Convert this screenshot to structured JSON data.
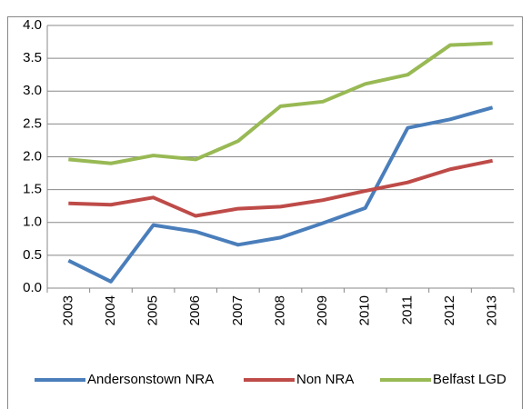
{
  "chart_data": {
    "type": "line",
    "categories": [
      "2003",
      "2004",
      "2005",
      "2006",
      "2007",
      "2008",
      "2009",
      "2010",
      "2011",
      "2012",
      "2013"
    ],
    "series": [
      {
        "name": "Andersonstown NRA",
        "color": "#4a7ebb",
        "values": [
          0.42,
          0.1,
          0.96,
          0.86,
          0.66,
          0.77,
          0.99,
          1.22,
          2.44,
          2.57,
          2.75
        ]
      },
      {
        "name": "Non NRA",
        "color": "#be4b48",
        "values": [
          1.29,
          1.27,
          1.38,
          1.1,
          1.21,
          1.24,
          1.34,
          1.48,
          1.61,
          1.81,
          1.94
        ]
      },
      {
        "name": "Belfast LGD",
        "color": "#98b954",
        "values": [
          1.96,
          1.9,
          2.02,
          1.96,
          2.24,
          2.77,
          2.84,
          3.11,
          3.25,
          3.7,
          3.73
        ]
      }
    ],
    "ylim": [
      0,
      4
    ],
    "yticks": [
      {
        "value": 0,
        "label": "0.0"
      },
      {
        "value": 0.5,
        "label": "0.5"
      },
      {
        "value": 1,
        "label": "1.0"
      },
      {
        "value": 1.5,
        "label": "1.5"
      },
      {
        "value": 2,
        "label": "2.0"
      },
      {
        "value": 2.5,
        "label": "2.5"
      },
      {
        "value": 3,
        "label": "3.0"
      },
      {
        "value": 3.5,
        "label": "3.5"
      },
      {
        "value": 4,
        "label": "4.0"
      }
    ],
    "grid": true,
    "legend": "bottom"
  }
}
